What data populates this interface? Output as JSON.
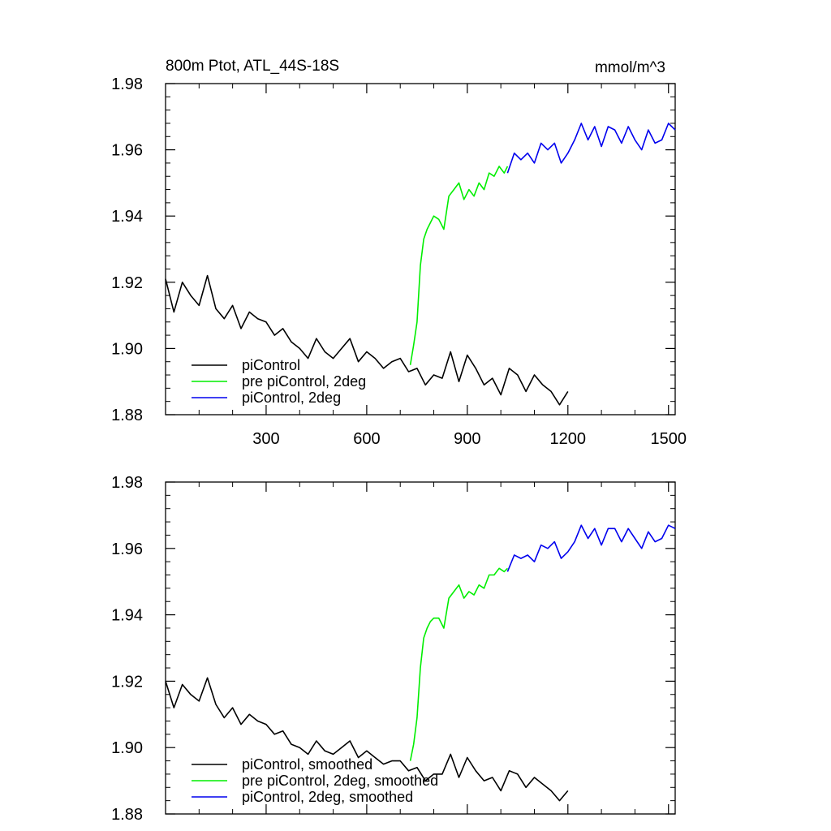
{
  "chart_data": [
    {
      "type": "line",
      "title": "800m Ptot, ATL_44S-18S",
      "units": "mmol/m^3",
      "xlim": [
        0,
        1520
      ],
      "ylim": [
        1.88,
        1.98
      ],
      "x_ticks": [
        300,
        600,
        900,
        1200,
        1500
      ],
      "y_ticks": [
        1.88,
        1.9,
        1.92,
        1.94,
        1.96,
        1.98
      ],
      "x_tick_labels": [
        "300",
        "600",
        "900",
        "1200",
        "1500"
      ],
      "y_tick_labels": [
        "1.88",
        "1.90",
        "1.92",
        "1.94",
        "1.96",
        "1.98"
      ],
      "legend_position": "bottom-left",
      "series": [
        {
          "name": "piControl",
          "color": "#000000",
          "x": [
            0,
            25,
            50,
            75,
            100,
            125,
            150,
            175,
            200,
            225,
            250,
            275,
            300,
            325,
            350,
            375,
            400,
            425,
            450,
            475,
            500,
            525,
            550,
            575,
            600,
            625,
            650,
            675,
            700,
            725,
            750,
            775,
            800,
            825,
            850,
            875,
            900,
            925,
            950,
            975,
            1000,
            1025,
            1050,
            1075,
            1100,
            1125,
            1150,
            1175,
            1200
          ],
          "y": [
            1.921,
            1.911,
            1.92,
            1.916,
            1.913,
            1.922,
            1.912,
            1.909,
            1.913,
            1.906,
            1.911,
            1.909,
            1.908,
            1.904,
            1.906,
            1.902,
            1.9,
            1.897,
            1.903,
            1.899,
            1.897,
            1.9,
            1.903,
            1.896,
            1.899,
            1.897,
            1.894,
            1.896,
            1.897,
            1.893,
            1.894,
            1.889,
            1.892,
            1.891,
            1.899,
            1.89,
            1.898,
            1.894,
            1.889,
            1.891,
            1.886,
            1.894,
            1.892,
            1.887,
            1.892,
            1.889,
            1.887,
            1.883,
            1.887
          ]
        },
        {
          "name": "pre piControl, 2deg",
          "color": "#00ee00",
          "x": [
            730,
            740,
            750,
            760,
            770,
            780,
            790,
            800,
            815,
            830,
            845,
            860,
            875,
            890,
            905,
            920,
            935,
            950,
            965,
            980,
            995,
            1010,
            1020
          ],
          "y": [
            1.895,
            1.901,
            1.908,
            1.925,
            1.933,
            1.936,
            1.938,
            1.94,
            1.939,
            1.936,
            1.946,
            1.948,
            1.95,
            1.945,
            1.948,
            1.946,
            1.95,
            1.948,
            1.953,
            1.952,
            1.955,
            1.953,
            1.955
          ]
        },
        {
          "name": "piControl, 2deg",
          "color": "#0000ee",
          "x": [
            1020,
            1040,
            1060,
            1080,
            1100,
            1120,
            1140,
            1160,
            1180,
            1200,
            1220,
            1240,
            1260,
            1280,
            1300,
            1320,
            1340,
            1360,
            1380,
            1400,
            1420,
            1440,
            1460,
            1480,
            1500,
            1520
          ],
          "y": [
            1.953,
            1.959,
            1.957,
            1.959,
            1.956,
            1.962,
            1.96,
            1.962,
            1.956,
            1.959,
            1.963,
            1.968,
            1.963,
            1.967,
            1.961,
            1.967,
            1.966,
            1.962,
            1.967,
            1.963,
            1.96,
            1.966,
            1.962,
            1.963,
            1.968,
            1.966
          ]
        }
      ]
    },
    {
      "type": "line",
      "xlim": [
        0,
        1520
      ],
      "ylim": [
        1.88,
        1.98
      ],
      "x_ticks": [
        300,
        600,
        900,
        1200,
        1500
      ],
      "y_ticks": [
        1.88,
        1.9,
        1.92,
        1.94,
        1.96,
        1.98
      ],
      "y_tick_labels": [
        "1.88",
        "1.90",
        "1.92",
        "1.94",
        "1.96",
        "1.98"
      ],
      "legend_position": "bottom-left",
      "series": [
        {
          "name": "piControl, smoothed",
          "color": "#000000",
          "x": [
            0,
            25,
            50,
            75,
            100,
            125,
            150,
            175,
            200,
            225,
            250,
            275,
            300,
            325,
            350,
            375,
            400,
            425,
            450,
            475,
            500,
            525,
            550,
            575,
            600,
            625,
            650,
            675,
            700,
            725,
            750,
            775,
            800,
            825,
            850,
            875,
            900,
            925,
            950,
            975,
            1000,
            1025,
            1050,
            1075,
            1100,
            1125,
            1150,
            1175,
            1200
          ],
          "y": [
            1.92,
            1.912,
            1.919,
            1.916,
            1.914,
            1.921,
            1.913,
            1.909,
            1.912,
            1.907,
            1.91,
            1.908,
            1.907,
            1.904,
            1.905,
            1.901,
            1.9,
            1.898,
            1.902,
            1.899,
            1.898,
            1.9,
            1.902,
            1.897,
            1.899,
            1.897,
            1.895,
            1.896,
            1.896,
            1.893,
            1.894,
            1.89,
            1.892,
            1.892,
            1.898,
            1.891,
            1.897,
            1.893,
            1.89,
            1.891,
            1.887,
            1.893,
            1.892,
            1.888,
            1.891,
            1.889,
            1.887,
            1.884,
            1.887
          ]
        },
        {
          "name": "pre piControl, 2deg, smoothed",
          "color": "#00ee00",
          "x": [
            730,
            740,
            750,
            760,
            770,
            780,
            790,
            800,
            815,
            830,
            845,
            860,
            875,
            890,
            905,
            920,
            935,
            950,
            965,
            980,
            995,
            1010,
            1020
          ],
          "y": [
            1.896,
            1.901,
            1.909,
            1.924,
            1.933,
            1.936,
            1.938,
            1.939,
            1.939,
            1.936,
            1.945,
            1.947,
            1.949,
            1.945,
            1.947,
            1.946,
            1.949,
            1.948,
            1.952,
            1.952,
            1.954,
            1.953,
            1.954
          ]
        },
        {
          "name": "piControl, 2deg, smoothed",
          "color": "#0000ee",
          "x": [
            1020,
            1040,
            1060,
            1080,
            1100,
            1120,
            1140,
            1160,
            1180,
            1200,
            1220,
            1240,
            1260,
            1280,
            1300,
            1320,
            1340,
            1360,
            1380,
            1400,
            1420,
            1440,
            1460,
            1480,
            1500,
            1520
          ],
          "y": [
            1.953,
            1.958,
            1.957,
            1.958,
            1.956,
            1.961,
            1.96,
            1.962,
            1.957,
            1.959,
            1.962,
            1.967,
            1.963,
            1.966,
            1.961,
            1.966,
            1.966,
            1.962,
            1.966,
            1.963,
            1.96,
            1.965,
            1.962,
            1.963,
            1.967,
            1.966
          ]
        }
      ]
    }
  ]
}
